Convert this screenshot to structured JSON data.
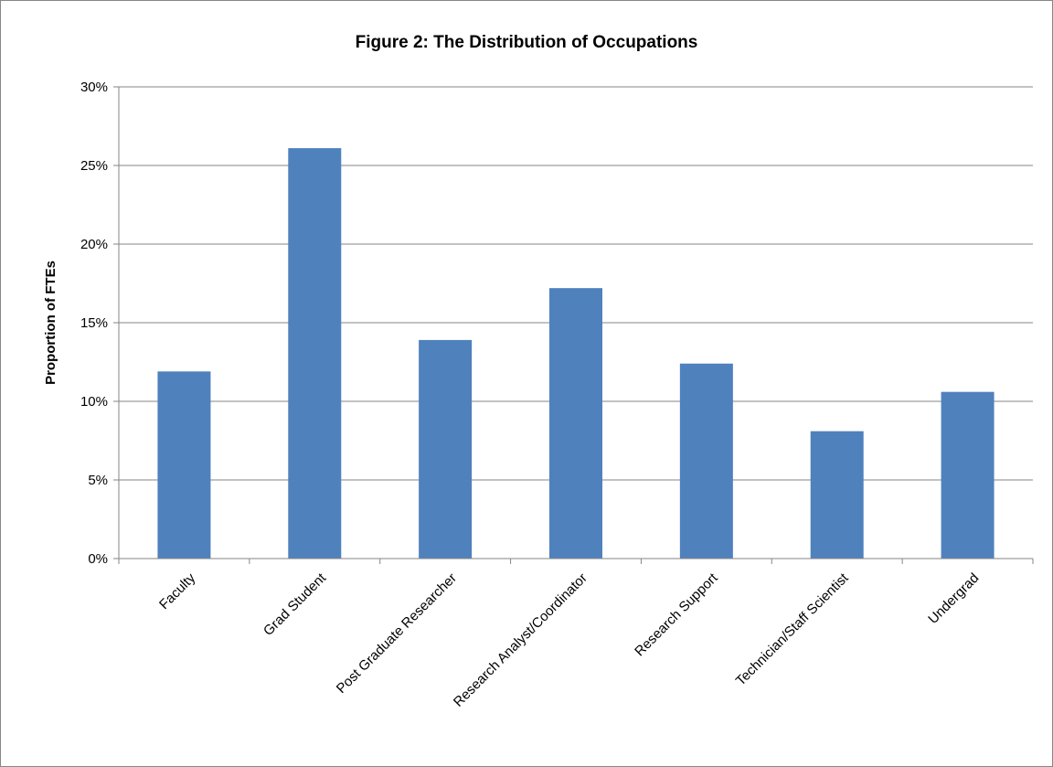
{
  "chart_data": {
    "type": "bar",
    "title": "Figure 2: The Distribution of Occupations",
    "xlabel": "",
    "ylabel": "Proportion of FTEs",
    "categories": [
      "Faculty",
      "Grad Student",
      "Post Graduate Researcher",
      "Research Analyst/Coordinator",
      "Research Support",
      "Technician/Staff Scientist",
      "Undergrad"
    ],
    "values": [
      0.119,
      0.261,
      0.139,
      0.172,
      0.124,
      0.081,
      0.106
    ],
    "ylim": [
      0,
      0.3
    ],
    "yticks": [
      0,
      0.05,
      0.1,
      0.15,
      0.2,
      0.25,
      0.3
    ],
    "ytick_labels": [
      "0%",
      "5%",
      "10%",
      "15%",
      "20%",
      "25%",
      "30%"
    ],
    "grid": true,
    "legend": "none",
    "bar_color": "#4f81bd"
  }
}
